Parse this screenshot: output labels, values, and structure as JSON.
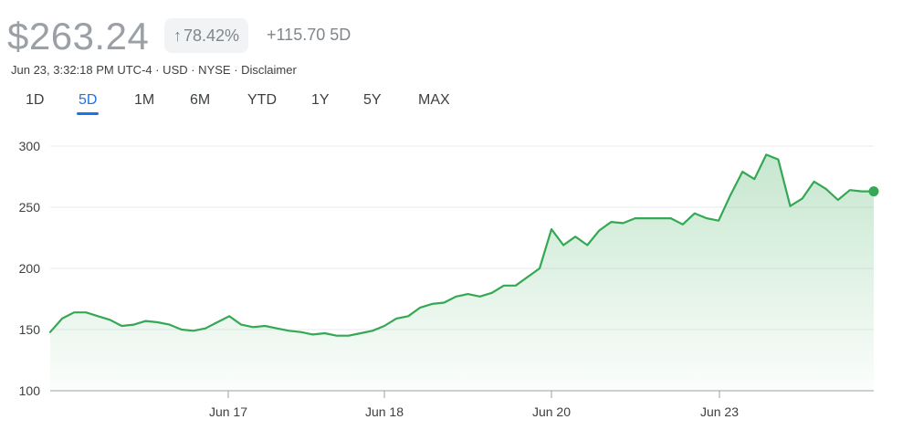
{
  "header": {
    "price": "$263.24",
    "percent_change": "78.42%",
    "absolute_change": "+115.70 5D",
    "meta": "Jun 23, 3:32:18 PM UTC-4 · USD · NYSE · Disclaimer"
  },
  "tabs": [
    "1D",
    "5D",
    "1M",
    "6M",
    "YTD",
    "1Y",
    "5Y",
    "MAX"
  ],
  "active_tab": "5D",
  "colors": {
    "line": "#34a853",
    "accent": "#1a73e8"
  },
  "chart_data": {
    "type": "area",
    "y_ticks": [
      "300",
      "250",
      "200",
      "150",
      "100"
    ],
    "x_labels": [
      "Jun 17",
      "Jun 18",
      "Jun 20",
      "Jun 23"
    ],
    "ylim": [
      100,
      300
    ],
    "grid": true,
    "series": [
      {
        "values": [
          148,
          159,
          164,
          164,
          161,
          158,
          153,
          154,
          157,
          156,
          154,
          150,
          149,
          151,
          156,
          161,
          154,
          152,
          153,
          151,
          149,
          148,
          146,
          147,
          145,
          145,
          147,
          149,
          153,
          159,
          161,
          168,
          171,
          172,
          177,
          179,
          177,
          180,
          186,
          186,
          193,
          200,
          232,
          219,
          226,
          219,
          231,
          238,
          237,
          241,
          241,
          241,
          241,
          236,
          245,
          241,
          239,
          260,
          279,
          273,
          293,
          289,
          251,
          257,
          271,
          265,
          256,
          264,
          263,
          263
        ]
      }
    ]
  }
}
